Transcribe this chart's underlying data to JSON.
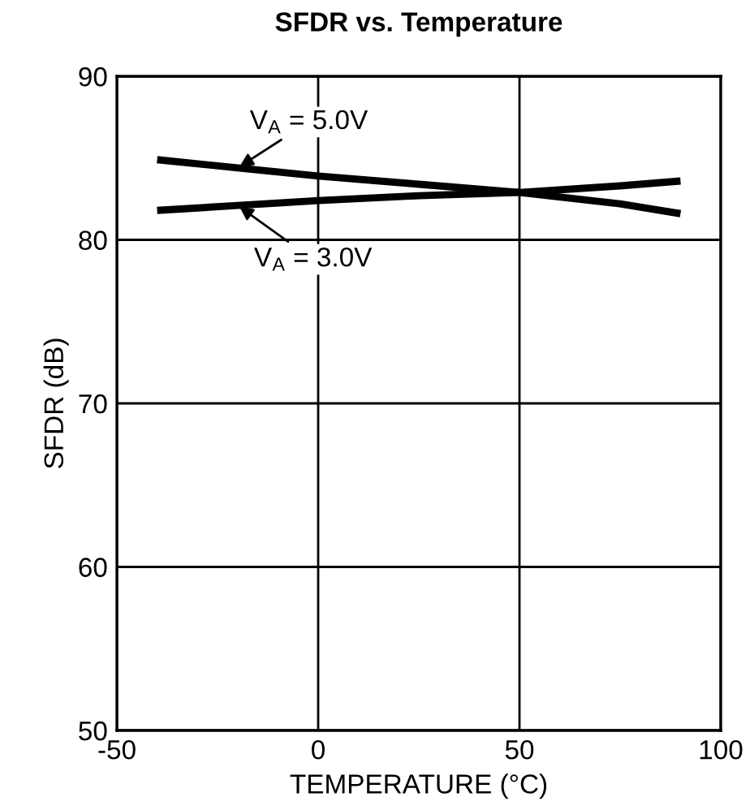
{
  "chart_data": {
    "type": "line",
    "title": "SFDR vs. Temperature",
    "xlabel": "TEMPERATURE (°C)",
    "ylabel": "SFDR (dB)",
    "xlim": [
      -50,
      100
    ],
    "xticks": [
      -50,
      0,
      50,
      100
    ],
    "ylim": [
      50,
      90
    ],
    "yticks": [
      50,
      60,
      70,
      80,
      90
    ],
    "grid": true,
    "series": [
      {
        "name": "V$_{A}$ = 5.0V",
        "color": "#000000",
        "x": [
          -40,
          -20,
          0,
          25,
          50,
          75,
          90
        ],
        "values": [
          84.9,
          84.4,
          83.9,
          83.4,
          82.9,
          82.2,
          81.6
        ]
      },
      {
        "name": "V$_{A}$ = 3.0V",
        "color": "#000000",
        "x": [
          -40,
          -20,
          0,
          25,
          50,
          75,
          90
        ],
        "values": [
          81.8,
          82.1,
          82.4,
          82.7,
          82.9,
          83.3,
          83.6
        ]
      }
    ]
  }
}
